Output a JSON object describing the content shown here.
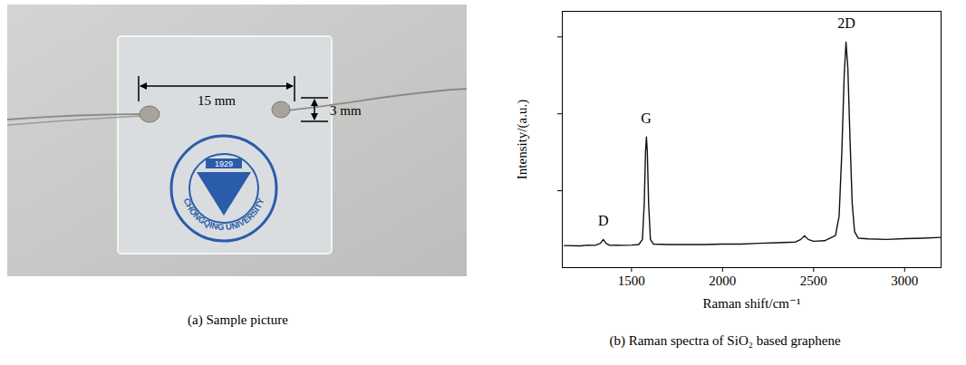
{
  "photo": {
    "caption": "(a) Sample picture",
    "dimensions": [
      {
        "label": "15 mm"
      },
      {
        "label": "3 mm"
      }
    ],
    "logo": {
      "text": "CHONGQING UNIVERSITY",
      "year": "1929"
    }
  },
  "chart_data": {
    "type": "line",
    "caption": "(b) Raman spectra of SiO₂ based graphene",
    "x_label": "Raman shift/cm⁻¹",
    "y_label": "Intensity/(a.u.)",
    "color": "#111111",
    "xlim": [
      1120,
      3200
    ],
    "xticks": [
      1500,
      2000,
      2500,
      3000
    ],
    "ylim": [
      0,
      1
    ],
    "yticks": [
      0.3,
      0.6,
      0.9
    ],
    "tick_labels": "x",
    "grid": false,
    "x": [
      1130,
      1220,
      1260,
      1300,
      1330,
      1345,
      1360,
      1380,
      1420,
      1460,
      1500,
      1540,
      1560,
      1570,
      1577,
      1582,
      1587,
      1594,
      1604,
      1620,
      1700,
      1800,
      1900,
      2000,
      2100,
      2200,
      2300,
      2400,
      2430,
      2450,
      2470,
      2500,
      2560,
      2620,
      2640,
      2655,
      2668,
      2678,
      2688,
      2700,
      2712,
      2725,
      2745,
      2800,
      2900,
      3000,
      3100,
      3200
    ],
    "values": [
      0.086,
      0.085,
      0.088,
      0.087,
      0.095,
      0.11,
      0.095,
      0.087,
      0.088,
      0.087,
      0.088,
      0.09,
      0.11,
      0.25,
      0.45,
      0.51,
      0.45,
      0.25,
      0.11,
      0.092,
      0.09,
      0.09,
      0.09,
      0.092,
      0.092,
      0.095,
      0.097,
      0.1,
      0.11,
      0.125,
      0.11,
      0.103,
      0.105,
      0.125,
      0.2,
      0.45,
      0.75,
      0.88,
      0.78,
      0.5,
      0.25,
      0.14,
      0.115,
      0.112,
      0.11,
      0.113,
      0.115,
      0.118
    ],
    "annotations": [
      {
        "text": "D",
        "x": 1345,
        "y": 0.165
      },
      {
        "text": "G",
        "x": 1580,
        "y": 0.565
      },
      {
        "text": "2D",
        "x": 2680,
        "y": 0.935
      }
    ]
  }
}
